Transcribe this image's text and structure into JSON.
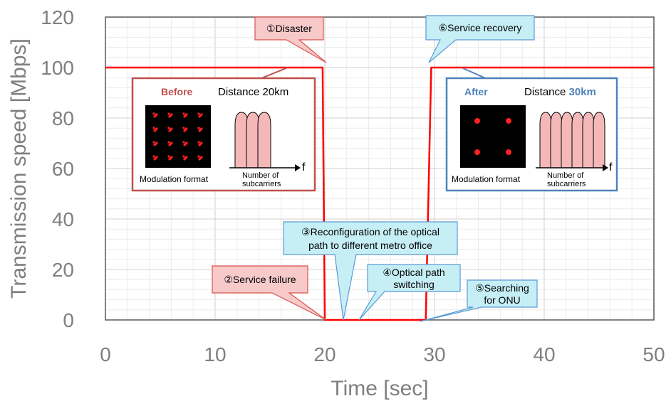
{
  "chart_data": {
    "type": "line",
    "xlabel": "Time [sec]",
    "ylabel": "Transmission speed [Mbps]",
    "xlim": [
      0,
      50
    ],
    "ylim": [
      0,
      120
    ],
    "xticks": [
      "0",
      "10",
      "20",
      "30",
      "40",
      "50"
    ],
    "yticks": [
      "0",
      "20",
      "40",
      "60",
      "80",
      "100",
      "120"
    ],
    "grid": true,
    "line_color": "#ff0000",
    "series": [
      {
        "x": [
          0,
          19.8,
          20.0,
          29.2,
          29.7,
          50
        ],
        "y": [
          100,
          100,
          0,
          0,
          100,
          100
        ]
      }
    ],
    "annotations": {
      "disaster": "①Disaster",
      "service_failure": "②Service failure",
      "reconfiguration": [
        "③Reconfiguration of the optical",
        "path to different metro office"
      ],
      "optical_switching": [
        "④Optical path",
        "switching"
      ],
      "searching_onu": [
        "⑤Searching",
        "for ONU"
      ],
      "service_recovery": "⑥Service recovery"
    },
    "before_box": {
      "title": "Before",
      "distance_label": "Distance 20km",
      "modulation_label": "Modulation  format",
      "subcarriers_label": [
        "Number  of",
        "subcarriers"
      ],
      "axis_symbol": "f",
      "color": "#c0504d"
    },
    "after_box": {
      "title": "After",
      "distance_prefix": "Distance ",
      "distance_value": "30km",
      "modulation_label": "Modulation  format",
      "subcarriers_label": [
        "Number  of",
        "subcarriers"
      ],
      "axis_symbol": "f",
      "color": "#4f81bd"
    },
    "colors": {
      "red_callout_fill": "#f7c9c9",
      "red_callout_stroke": "#d9534f",
      "blue_callout_fill": "#c6eef5",
      "blue_callout_stroke": "#5b9bd5",
      "carrier_fill": "#f5b8b8"
    }
  }
}
